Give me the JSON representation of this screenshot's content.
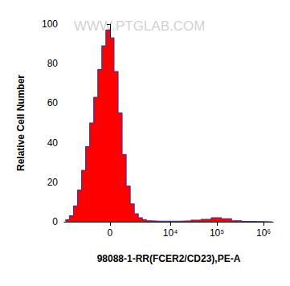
{
  "chart_data": {
    "type": "histogram",
    "xlabel": "98088-1-RR(FCER2/CD23),PE-A",
    "ylabel": "Relative Cell Number",
    "annotations": [
      "WWW.PTGLAB.COM"
    ],
    "color": "#ff0000",
    "bins": [
      -4537,
      -3692,
      -2995,
      -2419,
      -1938,
      -1536,
      -1196,
      -904,
      -648,
      -418,
      -205,
      0,
      205,
      418,
      648,
      904,
      1196,
      1536,
      1938,
      2419,
      2995,
      3692,
      6159,
      10200,
      16840,
      27780,
      45810,
      75540,
      124500,
      205300,
      338600,
      558200,
      920300,
      1517000
    ],
    "counts": [
      1,
      3,
      8,
      16,
      26,
      38,
      50,
      63,
      77,
      89,
      97,
      93,
      76,
      55,
      34,
      18,
      9,
      4,
      2,
      1,
      0.5,
      0.3,
      0.3,
      0.3,
      0.5,
      0.8,
      1.2,
      2,
      1.5,
      0.5,
      0.2,
      0.1,
      0
    ],
    "xlim": [
      -4800,
      1600000
    ],
    "xticks": [
      0,
      {
        "value": 10000,
        "label": "10⁴"
      },
      {
        "value": 100000,
        "label": "10⁵"
      },
      {
        "value": 1000000,
        "label": "10⁶"
      }
    ],
    "ylim": [
      0,
      100
    ],
    "yticks": [
      0,
      20,
      40,
      60,
      80,
      100
    ],
    "grid": false
  }
}
